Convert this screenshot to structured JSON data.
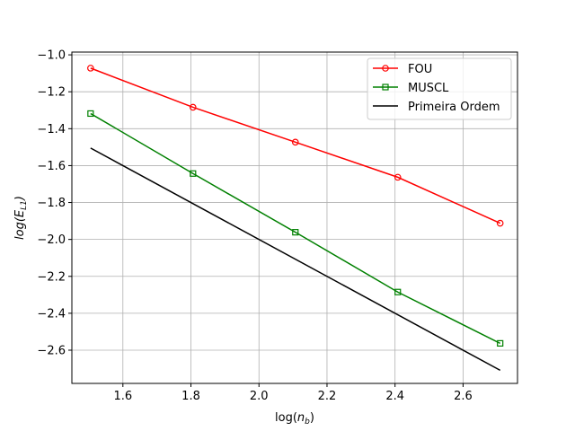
{
  "chart_data": {
    "type": "line",
    "xlabel_base": "log(",
    "xlabel_var": "n",
    "xlabel_sub": "b",
    "xlabel_close": ")",
    "ylabel_base": "log(",
    "ylabel_var": "E",
    "ylabel_sub": "L1",
    "ylabel_close": ")",
    "xlim": [
      1.45,
      2.76
    ],
    "ylim": [
      -2.78,
      -0.985
    ],
    "xticks": [
      1.6,
      1.8,
      2.0,
      2.2,
      2.4,
      2.6
    ],
    "xtick_labels": [
      "1.6",
      "1.8",
      "2.0",
      "2.2",
      "2.4",
      "2.6"
    ],
    "yticks": [
      -1.0,
      -1.2,
      -1.4,
      -1.6,
      -1.8,
      -2.0,
      -2.2,
      -2.4,
      -2.6
    ],
    "ytick_labels": [
      "−1.0",
      "−1.2",
      "−1.4",
      "−1.6",
      "−1.8",
      "−2.0",
      "−2.2",
      "−2.4",
      "−2.6"
    ],
    "grid": true,
    "legend_position": "top-right",
    "series": [
      {
        "name": "FOU",
        "color": "#ff0000",
        "marker": "circle",
        "x": [
          1.505,
          1.806,
          2.107,
          2.408,
          2.709
        ],
        "y": [
          -1.072,
          -1.284,
          -1.473,
          -1.663,
          -1.912
        ]
      },
      {
        "name": "MUSCL",
        "color": "#008000",
        "marker": "square",
        "x": [
          1.505,
          1.806,
          2.107,
          2.408,
          2.709
        ],
        "y": [
          -1.318,
          -1.643,
          -1.961,
          -2.285,
          -2.563
        ]
      },
      {
        "name": "Primeira Ordem",
        "color": "#000000",
        "marker": "none",
        "x": [
          1.505,
          2.709
        ],
        "y": [
          -1.505,
          -2.709
        ]
      }
    ]
  }
}
